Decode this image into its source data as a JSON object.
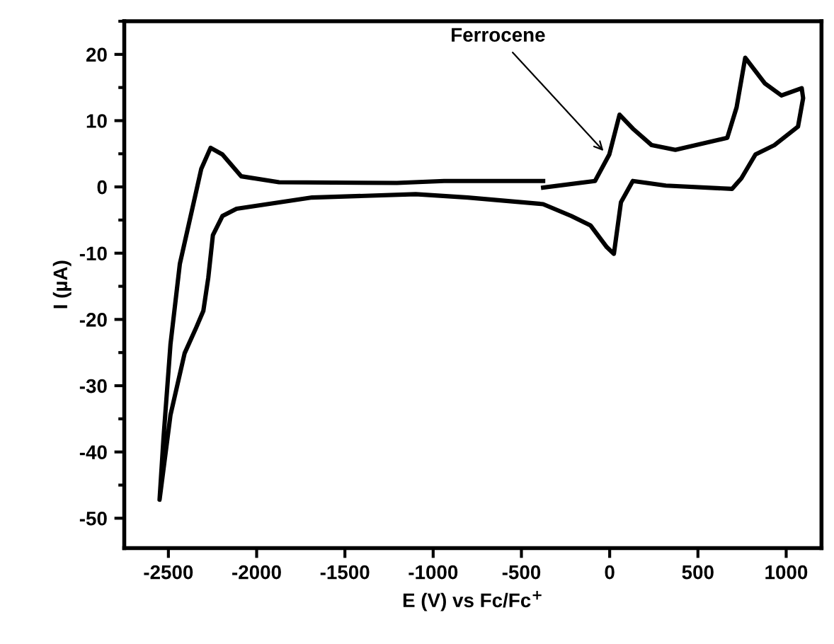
{
  "chart_data": {
    "type": "line",
    "xlabel": "E (V) vs Fc/Fc$^{+}$",
    "ylabel": "I (µA)",
    "xlim": [
      -2750,
      1200
    ],
    "xticks": [
      -2500,
      -2000,
      -1500,
      -1000,
      -500,
      0,
      500,
      1000
    ],
    "ylim": [
      -54.5,
      25
    ],
    "yticks": [
      20,
      10,
      0,
      -10,
      -20,
      -30,
      -40,
      -50
    ],
    "grid": false,
    "legend": false,
    "marker": "none",
    "line_style": "solid",
    "annotations": [
      {
        "text": "Ferrocene",
        "x": -20,
        "y": 5
      }
    ],
    "series": [
      {
        "color": "#000000",
        "x": [
          -377,
          -83,
          -2,
          56,
          131,
          238,
          372,
          666,
          719,
          768,
          880,
          973,
          1088,
          1096,
          1067,
          933,
          826,
          746,
          693,
          318,
          131,
          64,
          24,
          -16,
          -109,
          -217,
          -377,
          -804,
          -1099,
          -1686,
          -2114,
          -2194,
          -2248,
          -2274,
          -2302,
          -2342,
          -2408,
          -2488,
          -2550,
          -2528,
          -2488,
          -2435,
          -2368,
          -2314,
          -2261,
          -2194,
          -2087,
          -1873,
          -1205,
          -938,
          -377
        ],
        "values": [
          -0.1,
          0.9,
          4.9,
          10.9,
          8.8,
          6.3,
          5.6,
          7.4,
          12.0,
          19.5,
          15.6,
          13.8,
          14.9,
          13.4,
          9.1,
          6.3,
          4.9,
          1.3,
          -0.3,
          0.2,
          0.9,
          -2.3,
          -10.1,
          -9.1,
          -5.8,
          -4.4,
          -2.6,
          -1.6,
          -1.1,
          -1.6,
          -3.3,
          -4.4,
          -7.3,
          -13.7,
          -18.7,
          -21.2,
          -25.1,
          -34.4,
          -47.2,
          -38.0,
          -23.7,
          -11.6,
          -3.7,
          2.7,
          5.9,
          4.9,
          1.6,
          0.7,
          0.6,
          0.9,
          0.9
        ]
      }
    ]
  }
}
